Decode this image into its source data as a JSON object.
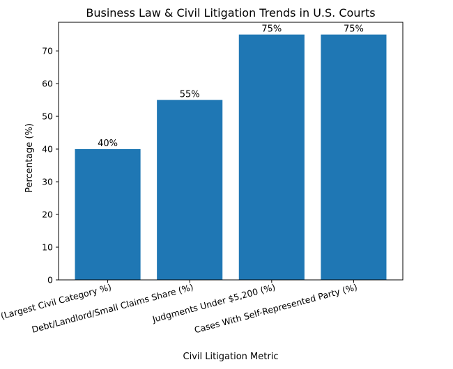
{
  "chart_data": {
    "type": "bar",
    "title": "Business Law & Civil Litigation Trends in U.S. Courts",
    "xlabel": "Civil Litigation Metric",
    "ylabel": "Percentage (%)",
    "categories": [
      "Contract Cases (Largest Civil Category %)",
      "Debt/Landlord/Small Claims Share (%)",
      "Judgments Under $5,200 (%)",
      "Cases With Self-Represented Party (%)"
    ],
    "values": [
      40,
      55,
      75,
      75
    ],
    "data_labels": [
      "40%",
      "55%",
      "75%",
      "75%"
    ],
    "ylim": [
      0,
      78.75
    ],
    "yticks": [
      0,
      10,
      20,
      30,
      40,
      50,
      60,
      70
    ],
    "grid": false,
    "colors": {
      "bar": "#1f77b4",
      "axis": "#000000",
      "text": "#000000"
    }
  }
}
